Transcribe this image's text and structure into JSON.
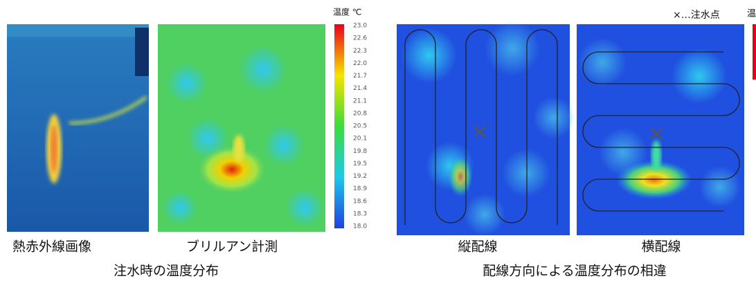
{
  "left": {
    "colorbar": {
      "title": "温度 ℃",
      "labels": [
        "23.0",
        "22.6",
        "22.3",
        "22.0",
        "21.7",
        "21.4",
        "21.1",
        "20.8",
        "20.5",
        "20.1",
        "19.8",
        "19.5",
        "19.2",
        "18.9",
        "18.6",
        "18.3",
        "18.0"
      ]
    },
    "captions": [
      "熱赤外線画像",
      "ブリルアン計測"
    ],
    "title": "注水時の温度分布"
  },
  "right": {
    "legend": "×…注水点",
    "colorbar_title": "温",
    "captions": [
      "縦配線",
      "横配線"
    ],
    "title": "配線方向による温度分布の相違"
  }
}
